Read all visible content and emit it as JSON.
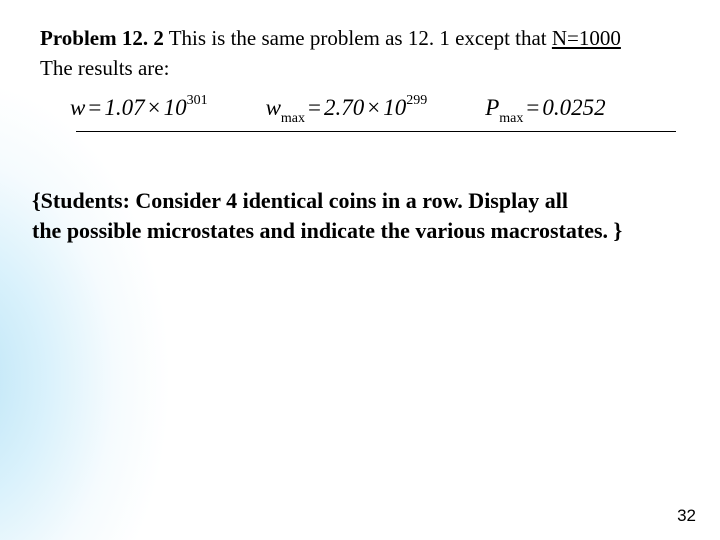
{
  "problem": {
    "label_bold": "Problem 12. 2",
    "text_before_underline": " This is the same problem as 12. 1 except that ",
    "underline_text": "N=1000",
    "results_label": "The results are:"
  },
  "equations": {
    "w": {
      "var": "w",
      "eq": "=",
      "coef": "1.07",
      "times": "×",
      "base": "10",
      "exp": "301"
    },
    "wmax": {
      "var": "w",
      "sub": "max",
      "eq": "=",
      "coef": "2.70",
      "times": "×",
      "base": "10",
      "exp": "299"
    },
    "pmax": {
      "var": "P",
      "sub": "max",
      "eq": "=",
      "val": "0.0252"
    }
  },
  "students": {
    "line1": "{Students: Consider 4 identical coins in a row. Display all",
    "line2": " the possible microstates and indicate the various macrostates. }"
  },
  "page_number": "32",
  "colors": {
    "text": "#000000",
    "background": "#ffffff",
    "gradient_start": "#b4e1f5"
  }
}
